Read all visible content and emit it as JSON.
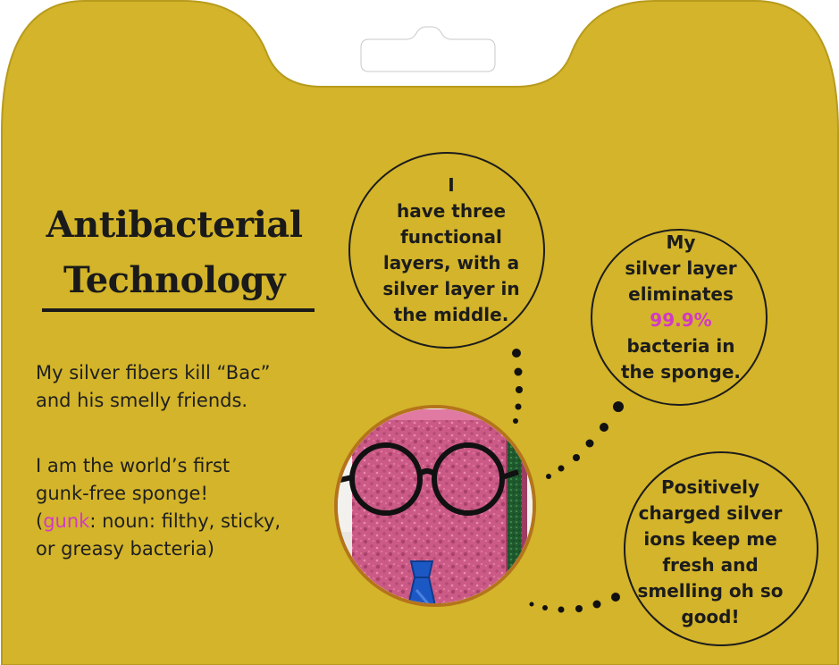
{
  "title": {
    "line1": "Antibacterial",
    "line2": "Technology"
  },
  "body": {
    "p1_line1": "My silver fibers kill “Bac”",
    "p1_line2": "and his smelly friends.",
    "p2_line1": "I am the world’s first",
    "p2_line2": "gunk-free sponge!",
    "p2_line3_open": "(",
    "p2_line3_highlight": "gunk",
    "p2_line3_rest": ": noun: filthy, sticky,",
    "p2_line4": "or greasy bacteria)"
  },
  "bubble1": {
    "l1": "I",
    "l2": "have three",
    "l3": "functional",
    "l4": "layers, with a",
    "l5": "silver layer in",
    "l6": "the middle."
  },
  "bubble2": {
    "l1": "My",
    "l2": "silver layer",
    "l3": "eliminates",
    "l4": "99.9%",
    "l5": "bacteria in",
    "l6": "the sponge."
  },
  "bubble3": {
    "l1": "Positively",
    "l2": "charged silver",
    "l3": "ions keep me",
    "l4": "fresh and",
    "l5": "smelling oh so",
    "l6": "good!"
  },
  "colors": {
    "package": "#d3b42a",
    "package_edge": "#b89b1d",
    "ink": "#1c1c1c",
    "highlight": "#d23ac6",
    "sponge": "#cc5a86",
    "scrub_layer": "#1f5a2e",
    "tie": "#1c58c4"
  },
  "icons": [
    "hang-hole",
    "sponge-character",
    "round-glasses",
    "necktie",
    "speech-bubble"
  ]
}
